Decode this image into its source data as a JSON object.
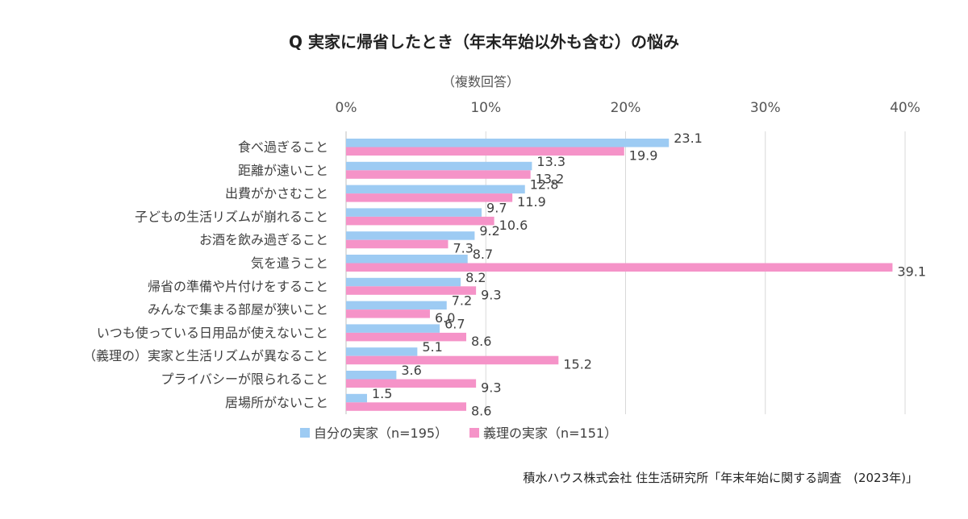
{
  "title": "Q  実家に帰省したとき（年末年始以外も含む）の悩み",
  "axis_note": "（複数回答）",
  "source": "積水ハウス株式会社 住生活研究所「年末年始に関する調査　(2023年)」",
  "colors": {
    "own": "#9DCBF3",
    "inlaw": "#F593C8",
    "grid": "#D9D9D9"
  },
  "chart_data": {
    "type": "bar",
    "orientation": "horizontal",
    "categories": [
      "食べ過ぎること",
      "距離が遠いこと",
      "出費がかさむこと",
      "子どもの生活リズムが崩れること",
      "お酒を飲み過ぎること",
      "気を遣うこと",
      "帰省の準備や片付けをすること",
      "みんなで集まる部屋が狭いこと",
      "いつも使っている日用品が使えないこと",
      "（義理の）実家と生活リズムが異なること",
      "プライバシーが限られること",
      "居場所がないこと"
    ],
    "series": [
      {
        "name": "自分の実家（n=195）",
        "values": [
          23.1,
          13.3,
          12.8,
          9.7,
          9.2,
          8.7,
          8.2,
          7.2,
          6.7,
          5.1,
          3.6,
          1.5
        ]
      },
      {
        "name": "義理の実家（n=151）",
        "values": [
          19.9,
          13.2,
          11.9,
          10.6,
          7.3,
          39.1,
          9.3,
          6.0,
          8.6,
          15.2,
          9.3,
          8.6
        ]
      }
    ],
    "value_labels": [
      [
        "23.1",
        "13.3",
        "12.8",
        "9.7",
        "9.2",
        "8.7",
        "8.2",
        "7.2",
        "6.7",
        "5.1",
        "3.6",
        "1.5"
      ],
      [
        "19.9",
        "13.2",
        "11.9",
        "10.6",
        "7.3",
        "39.1",
        "9.3",
        "6.0",
        "8.6",
        "15.2",
        "9.3",
        "8.6"
      ]
    ],
    "xlim": [
      0,
      40
    ],
    "xticks": [
      "0%",
      "10%",
      "20%",
      "30%",
      "40%"
    ],
    "grid": true,
    "legend": "bottom"
  }
}
